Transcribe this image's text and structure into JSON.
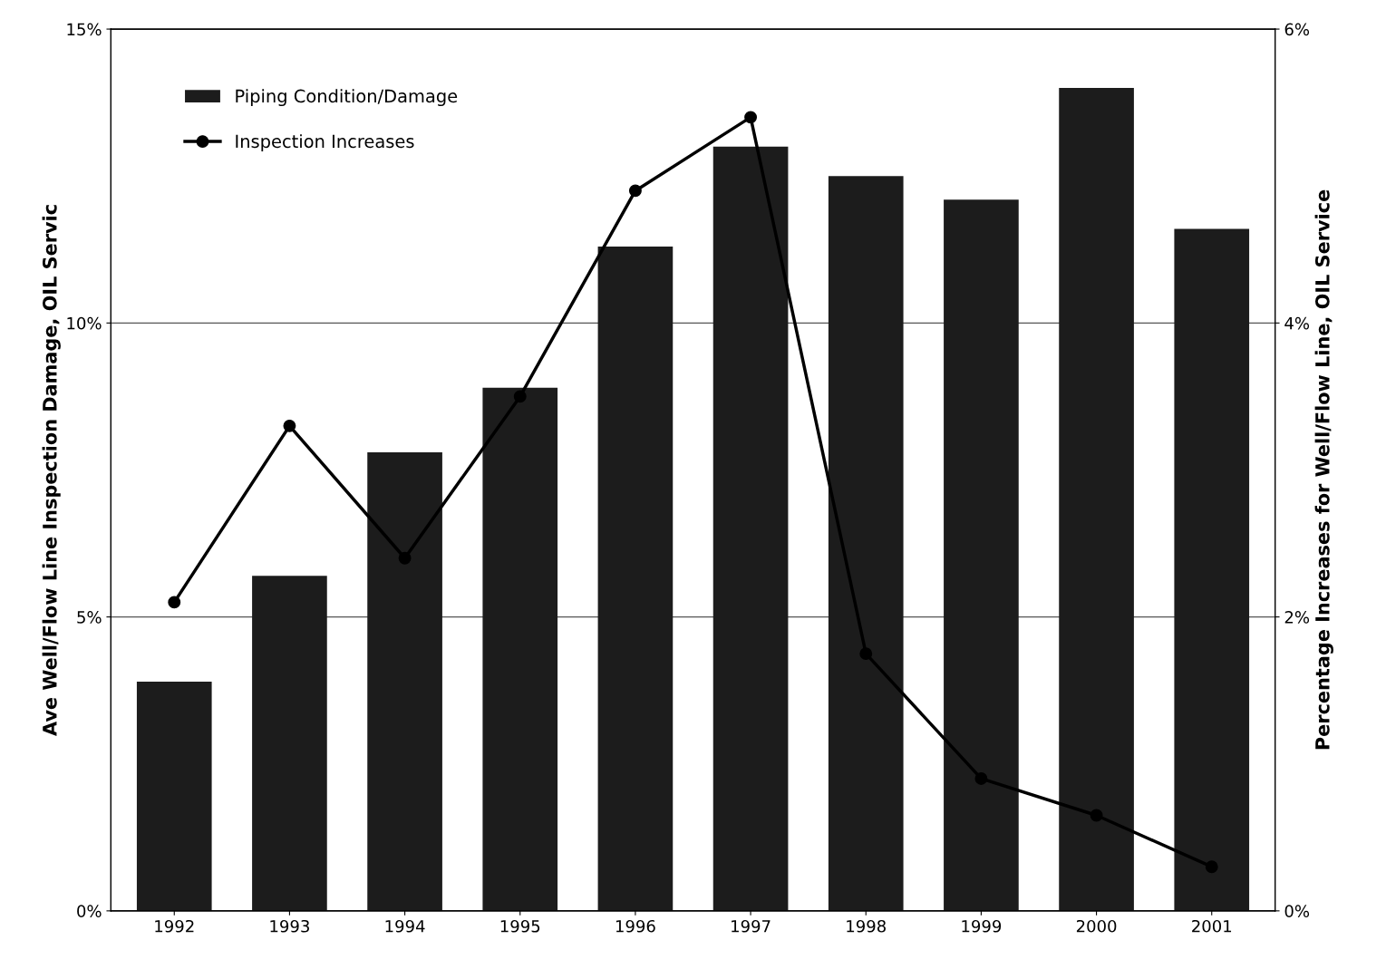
{
  "chart_data": {
    "type": "bar",
    "categories": [
      "1992",
      "1993",
      "1994",
      "1995",
      "1996",
      "1997",
      "1998",
      "1999",
      "2000",
      "2001"
    ],
    "series": [
      {
        "name": "Piping Condition/Damage",
        "color": "#1c1c1c",
        "values": [
          3.9,
          5.7,
          7.8,
          8.9,
          11.3,
          13.0,
          12.5,
          12.1,
          14.0,
          11.6
        ]
      },
      {
        "name": "Inspection Increases",
        "type": "line",
        "axis": "y2",
        "color": "#000000",
        "marker": "circle",
        "values": [
          2.1,
          3.3,
          2.4,
          3.5,
          4.9,
          5.4,
          1.75,
          0.9,
          0.65,
          0.3
        ]
      }
    ],
    "ylabel": "Ave Well/Flow Line Inspection Damage, OIL Servic",
    "y2label": "Percentage Increases for Well/Flow Line, OIL Service",
    "ylim": [
      0,
      15
    ],
    "yticks": [
      {
        "value": 0,
        "label": "0%"
      },
      {
        "value": 5,
        "label": "5%"
      },
      {
        "value": 10,
        "label": "10%"
      },
      {
        "value": 15,
        "label": "15%"
      }
    ],
    "y2lim": [
      0,
      6
    ],
    "y2ticks": [
      {
        "value": 0,
        "label": "0%"
      },
      {
        "value": 2,
        "label": "2%"
      },
      {
        "value": 4,
        "label": "4%"
      },
      {
        "value": 6,
        "label": "6%"
      }
    ],
    "grid": "y",
    "legend": "top left"
  }
}
